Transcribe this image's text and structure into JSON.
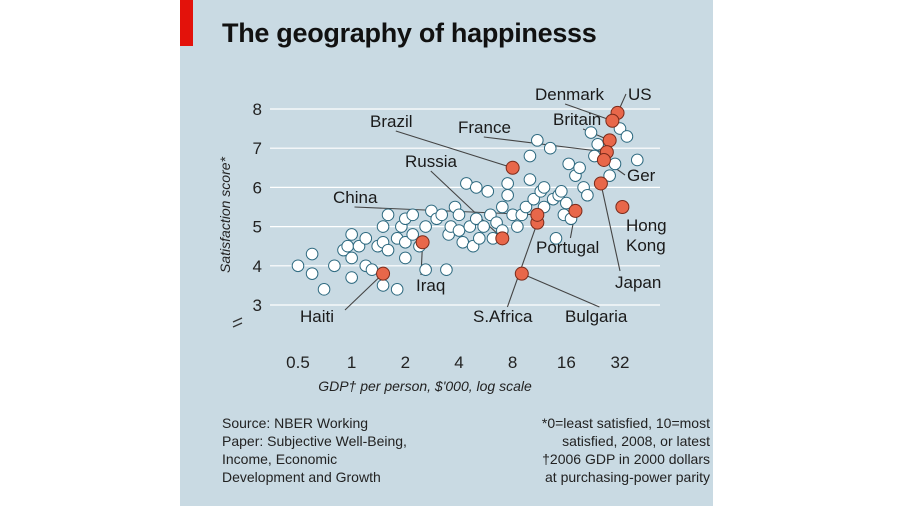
{
  "title": "The geography of happinesss",
  "footnotes": {
    "source_lines": [
      "Source: NBER Working",
      "Paper: Subjective Well-Being,",
      "Income, Economic",
      "Development and Growth"
    ],
    "note_lines": [
      "*0=least satisfied, 10=most",
      "satisfied, 2008, or latest",
      "†2006 GDP in 2000 dollars",
      "at purchasing-power parity"
    ]
  },
  "colors": {
    "panel": "#c9dae3",
    "accent": "#e3120b",
    "highlight": "#e8674a",
    "point_fill": "#ffffff",
    "point_stroke": "#2e6a80"
  },
  "chart_data": {
    "type": "scatter",
    "title": "The geography of happinesss",
    "xlabel": "GDP† per person, $'000, log scale",
    "ylabel": "Satisfaction score*",
    "x_scale": "log2",
    "xlim": [
      0.4,
      50
    ],
    "ylim": [
      2.5,
      8.6
    ],
    "x_ticks": [
      0.5,
      1,
      2,
      4,
      8,
      16,
      32
    ],
    "x_tick_labels": [
      "0.5",
      "1",
      "2",
      "4",
      "8",
      "16",
      "32"
    ],
    "y_ticks": [
      3,
      4,
      5,
      6,
      7,
      8
    ],
    "y_tick_labels": [
      "3",
      "4",
      "5",
      "6",
      "7",
      "8"
    ],
    "grid": "horizontal",
    "highlighted": [
      {
        "label": "US",
        "x": 31,
        "y": 7.9
      },
      {
        "label": "Denmark",
        "x": 29,
        "y": 7.7
      },
      {
        "label": "Britain",
        "x": 28,
        "y": 7.2
      },
      {
        "label": "France",
        "x": 27,
        "y": 6.9
      },
      {
        "label": "Ger",
        "x": 26,
        "y": 6.7
      },
      {
        "label": "Brazil",
        "x": 8,
        "y": 6.5
      },
      {
        "label": "Japan",
        "x": 25,
        "y": 6.1
      },
      {
        "label": "Hong Kong",
        "x": 33,
        "y": 5.5
      },
      {
        "label": "Russia",
        "x": 7,
        "y": 4.7
      },
      {
        "label": "Portugal",
        "x": 18,
        "y": 5.4
      },
      {
        "label": "S.Africa",
        "x": 11,
        "y": 5.1
      },
      {
        "label": "China",
        "x": 11,
        "y": 5.3
      },
      {
        "label": "Iraq",
        "x": 2.5,
        "y": 4.6
      },
      {
        "label": "Haiti",
        "x": 1.5,
        "y": 3.8
      },
      {
        "label": "Bulgaria",
        "x": 9,
        "y": 3.8
      }
    ],
    "other_points": [
      [
        0.5,
        4.0
      ],
      [
        0.6,
        4.3
      ],
      [
        0.6,
        3.8
      ],
      [
        0.7,
        3.4
      ],
      [
        0.8,
        4.0
      ],
      [
        0.9,
        4.4
      ],
      [
        0.95,
        4.5
      ],
      [
        1.0,
        4.8
      ],
      [
        1.0,
        4.2
      ],
      [
        1.0,
        3.7
      ],
      [
        1.1,
        4.5
      ],
      [
        1.2,
        4.0
      ],
      [
        1.2,
        4.7
      ],
      [
        1.3,
        3.9
      ],
      [
        1.4,
        4.5
      ],
      [
        1.5,
        3.5
      ],
      [
        1.5,
        4.6
      ],
      [
        1.5,
        5.0
      ],
      [
        1.6,
        4.4
      ],
      [
        1.6,
        5.3
      ],
      [
        1.8,
        4.7
      ],
      [
        1.8,
        3.4
      ],
      [
        1.9,
        5.0
      ],
      [
        2.0,
        4.2
      ],
      [
        2.0,
        4.6
      ],
      [
        2.0,
        5.2
      ],
      [
        2.2,
        4.8
      ],
      [
        2.2,
        5.3
      ],
      [
        2.4,
        4.5
      ],
      [
        2.6,
        5.0
      ],
      [
        2.6,
        3.9
      ],
      [
        2.8,
        5.4
      ],
      [
        3.0,
        5.2
      ],
      [
        3.2,
        5.3
      ],
      [
        3.4,
        3.9
      ],
      [
        3.5,
        4.8
      ],
      [
        3.6,
        5.0
      ],
      [
        3.8,
        5.5
      ],
      [
        4.0,
        4.9
      ],
      [
        4.0,
        5.3
      ],
      [
        4.2,
        4.6
      ],
      [
        4.4,
        6.1
      ],
      [
        4.6,
        5.0
      ],
      [
        4.8,
        4.5
      ],
      [
        5.0,
        5.2
      ],
      [
        5.0,
        6.0
      ],
      [
        5.2,
        4.7
      ],
      [
        5.5,
        5.0
      ],
      [
        5.8,
        5.9
      ],
      [
        6.0,
        5.3
      ],
      [
        6.2,
        4.7
      ],
      [
        6.5,
        5.1
      ],
      [
        7.0,
        5.5
      ],
      [
        7.0,
        4.9
      ],
      [
        7.5,
        6.1
      ],
      [
        7.5,
        5.8
      ],
      [
        8.0,
        5.3
      ],
      [
        8.5,
        5.0
      ],
      [
        9.0,
        5.3
      ],
      [
        9.5,
        5.5
      ],
      [
        10.0,
        6.8
      ],
      [
        10.0,
        6.2
      ],
      [
        10.5,
        5.7
      ],
      [
        11.0,
        7.2
      ],
      [
        11.5,
        5.9
      ],
      [
        12.0,
        6.0
      ],
      [
        12.0,
        5.5
      ],
      [
        13.0,
        7.0
      ],
      [
        13.5,
        5.7
      ],
      [
        14.0,
        4.7
      ],
      [
        14.5,
        5.8
      ],
      [
        15.0,
        5.9
      ],
      [
        15.5,
        5.3
      ],
      [
        16.0,
        5.6
      ],
      [
        16.5,
        6.6
      ],
      [
        17.0,
        5.2
      ],
      [
        18.0,
        6.3
      ],
      [
        19.0,
        6.5
      ],
      [
        20.0,
        6.0
      ],
      [
        21.0,
        5.8
      ],
      [
        22.0,
        7.4
      ],
      [
        23.0,
        6.8
      ],
      [
        24.0,
        7.1
      ],
      [
        28.0,
        6.3
      ],
      [
        30.0,
        6.6
      ],
      [
        32.0,
        7.5
      ],
      [
        35.0,
        7.3
      ],
      [
        40.0,
        6.7
      ]
    ]
  }
}
